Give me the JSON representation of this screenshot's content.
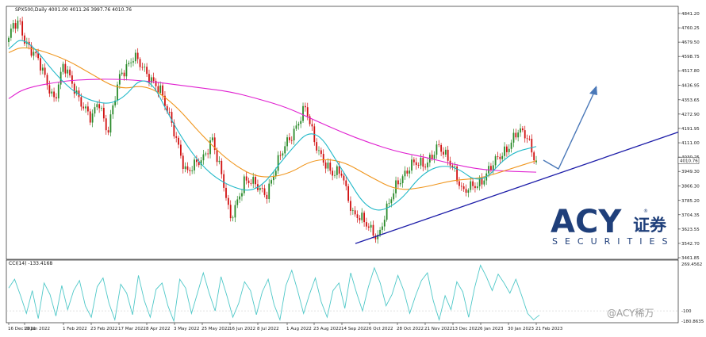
{
  "header": {
    "symbol_line": "SPX500,Daily  4001.00 4011.26 3997.76 4010.76"
  },
  "cci_header": "CCI(14) -133.4168",
  "watermark": {
    "brand": "ACY",
    "securities": "SECURITIES",
    "chinese": "证券",
    "registered": "®",
    "credit": "@ACY稀万"
  },
  "colors": {
    "bull": "#2a8a2a",
    "bear": "#d01010",
    "ma_fast": "#1fb8c8",
    "ma_mid": "#f0961e",
    "ma_slow": "#e020d0",
    "cci": "#4fc8c8",
    "trendline": "#1c1ca8",
    "arrow": "#4a78b8",
    "price_tag": "#ffffff"
  },
  "chart_data": [
    {
      "type": "candlestick",
      "symbol": "SPX500",
      "timeframe": "Daily",
      "ohlc_last": {
        "open": 4001.0,
        "high": 4011.26,
        "low": 3997.76,
        "close": 4010.76
      },
      "y_ticks": [
        4841.2,
        4760.25,
        4679.5,
        4598.75,
        4517.8,
        4436.95,
        4353.65,
        4272.9,
        4191.95,
        4111.0,
        4030.25,
        3949.3,
        3866.3,
        3785.2,
        3704.35,
        3623.55,
        3542.7,
        3461.85
      ],
      "last_price_label": "4010.76",
      "x_ticks": [
        "16 Dec 2021",
        "10 Jan 2022",
        "1 Feb 2022",
        "23 Feb 2022",
        "17 Mar 2022",
        "8 Apr 2022",
        "3 May 2022",
        "25 May 2022",
        "16 Jun 2022",
        "8 Jul 2022",
        "1 Aug 2022",
        "23 Aug 2022",
        "14 Sep 2022",
        "6 Oct 2022",
        "28 Oct 2022",
        "21 Nov 2022",
        "13 Dec 2022",
        "6 Jan 2023",
        "30 Jan 2023",
        "21 Feb 2023"
      ],
      "close_path": [
        [
          "16 Dec 2021",
          4680
        ],
        [
          "23 Dec 2021",
          4770
        ],
        [
          "3 Jan 2022",
          4790
        ],
        [
          "10 Jan 2022",
          4700
        ],
        [
          "18 Jan 2022",
          4560
        ],
        [
          "27 Jan 2022",
          4360
        ],
        [
          "1 Feb 2022",
          4540
        ],
        [
          "10 Feb 2022",
          4420
        ],
        [
          "23 Feb 2022",
          4230
        ],
        [
          "1 Mar 2022",
          4350
        ],
        [
          "8 Mar 2022",
          4180
        ],
        [
          "17 Mar 2022",
          4460
        ],
        [
          "29 Mar 2022",
          4620
        ],
        [
          "8 Apr 2022",
          4480
        ],
        [
          "20 Apr 2022",
          4430
        ],
        [
          "3 May 2022",
          4150
        ],
        [
          "12 May 2022",
          3960
        ],
        [
          "25 May 2022",
          4000
        ],
        [
          "2 Jun 2022",
          4150
        ],
        [
          "10 Jun 2022",
          3900
        ],
        [
          "16 Jun 2022",
          3670
        ],
        [
          "27 Jun 2022",
          3900
        ],
        [
          "8 Jul 2022",
          3860
        ],
        [
          "15 Jul 2022",
          3830
        ],
        [
          "1 Aug 2022",
          4120
        ],
        [
          "16 Aug 2022",
          4300
        ],
        [
          "23 Aug 2022",
          4130
        ],
        [
          "6 Sep 2022",
          3920
        ],
        [
          "14 Sep 2022",
          3950
        ],
        [
          "23 Sep 2022",
          3700
        ],
        [
          "6 Oct 2022",
          3640
        ],
        [
          "13 Oct 2022",
          3580
        ],
        [
          "28 Oct 2022",
          3900
        ],
        [
          "10 Nov 2022",
          3980
        ],
        [
          "21 Nov 2022",
          4000
        ],
        [
          "1 Dec 2022",
          4080
        ],
        [
          "13 Dec 2022",
          3990
        ],
        [
          "22 Dec 2022",
          3820
        ],
        [
          "6 Jan 2023",
          3900
        ],
        [
          "18 Jan 2023",
          3990
        ],
        [
          "30 Jan 2023",
          4100
        ],
        [
          "6 Feb 2023",
          4170
        ],
        [
          "14 Feb 2023",
          4140
        ],
        [
          "21 Feb 2023",
          4010
        ]
      ],
      "sma_fast": [
        [
          "16 Dec 2021",
          4640
        ],
        [
          "10 Jan 2022",
          4720
        ],
        [
          "1 Feb 2022",
          4440
        ],
        [
          "23 Feb 2022",
          4340
        ],
        [
          "17 Mar 2022",
          4330
        ],
        [
          "8 Apr 2022",
          4520
        ],
        [
          "3 May 2022",
          4200
        ],
        [
          "25 May 2022",
          3970
        ],
        [
          "16 Jun 2022",
          3860
        ],
        [
          "8 Jul 2022",
          3830
        ],
        [
          "1 Aug 2022",
          4050
        ],
        [
          "23 Aug 2022",
          4210
        ],
        [
          "14 Sep 2022",
          3960
        ],
        [
          "6 Oct 2022",
          3710
        ],
        [
          "28 Oct 2022",
          3760
        ],
        [
          "21 Nov 2022",
          3960
        ],
        [
          "13 Dec 2022",
          3990
        ],
        [
          "6 Jan 2023",
          3870
        ],
        [
          "30 Jan 2023",
          4050
        ],
        [
          "21 Feb 2023",
          4090
        ]
      ],
      "sma_mid": [
        [
          "16 Dec 2021",
          4620
        ],
        [
          "10 Jan 2022",
          4660
        ],
        [
          "1 Feb 2022",
          4590
        ],
        [
          "23 Feb 2022",
          4500
        ],
        [
          "17 Mar 2022",
          4410
        ],
        [
          "8 Apr 2022",
          4440
        ],
        [
          "3 May 2022",
          4330
        ],
        [
          "25 May 2022",
          4150
        ],
        [
          "16 Jun 2022",
          4000
        ],
        [
          "8 Jul 2022",
          3910
        ],
        [
          "1 Aug 2022",
          3930
        ],
        [
          "23 Aug 2022",
          4020
        ],
        [
          "14 Sep 2022",
          4010
        ],
        [
          "6 Oct 2022",
          3920
        ],
        [
          "28 Oct 2022",
          3840
        ],
        [
          "21 Nov 2022",
          3860
        ],
        [
          "13 Dec 2022",
          3900
        ],
        [
          "6 Jan 2023",
          3910
        ],
        [
          "30 Jan 2023",
          3960
        ],
        [
          "21 Feb 2023",
          4010
        ]
      ],
      "sma_slow": [
        [
          "16 Dec 2021",
          4360
        ],
        [
          "10 Jan 2022",
          4420
        ],
        [
          "1 Feb 2022",
          4460
        ],
        [
          "23 Feb 2022",
          4470
        ],
        [
          "17 Mar 2022",
          4470
        ],
        [
          "8 Apr 2022",
          4460
        ],
        [
          "3 May 2022",
          4440
        ],
        [
          "25 May 2022",
          4420
        ],
        [
          "16 Jun 2022",
          4400
        ],
        [
          "8 Jul 2022",
          4360
        ],
        [
          "1 Aug 2022",
          4310
        ],
        [
          "23 Aug 2022",
          4240
        ],
        [
          "14 Sep 2022",
          4170
        ],
        [
          "6 Oct 2022",
          4110
        ],
        [
          "28 Oct 2022",
          4060
        ],
        [
          "21 Nov 2022",
          4030
        ],
        [
          "13 Dec 2022",
          3990
        ],
        [
          "6 Jan 2023",
          3960
        ],
        [
          "30 Jan 2023",
          3950
        ],
        [
          "21 Feb 2023",
          3945
        ]
      ],
      "support_trendline": [
        [
          "6 Oct 2022",
          3560
        ],
        [
          "8 Mar 2023",
          4180
        ]
      ],
      "projection_arrow": [
        [
          "17 Feb 2023",
          3980
        ],
        [
          "24 Feb 2023",
          3950
        ],
        [
          "8 Mar 2023",
          4380
        ]
      ]
    },
    {
      "type": "line",
      "title": "CCI(14) -133.4168",
      "y_ticks": [
        269.4562,
        -100.0,
        -180.8635
      ],
      "y_tick_labels": [
        "269.4562",
        "-100",
        "-180.8635"
      ],
      "ylim": [
        -180.8635,
        269.4562
      ],
      "x_ticks": [
        "16 Dec 2021",
        "10 Jan 2022",
        "1 Feb 2022",
        "23 Feb 2022",
        "17 Mar 2022",
        "8 Apr 2022",
        "3 May 2022",
        "25 May 2022",
        "16 Jun 2022",
        "8 Jul 2022",
        "1 Aug 2022",
        "23 Aug 2022",
        "14 Sep 2022",
        "6 Oct 2022",
        "28 Oct 2022",
        "21 Nov 2022",
        "13 Dec 2022",
        "6 Jan 2023",
        "30 Jan 2023",
        "21 Feb 2023"
      ],
      "values": [
        80,
        150,
        20,
        -120,
        60,
        -160,
        120,
        30,
        -140,
        100,
        -90,
        60,
        140,
        -60,
        -150,
        90,
        160,
        -40,
        -170,
        110,
        40,
        -130,
        180,
        -20,
        -150,
        70,
        120,
        -60,
        -180,
        150,
        80,
        -120,
        40,
        200,
        40,
        -100,
        170,
        20,
        -150,
        -40,
        130,
        60,
        -130,
        50,
        150,
        -50,
        -170,
        100,
        220,
        60,
        -120,
        30,
        160,
        -30,
        -150,
        60,
        120,
        -80,
        200,
        40,
        -100,
        90,
        240,
        120,
        -60,
        30,
        180,
        60,
        -120,
        20,
        140,
        200,
        -20,
        -170,
        20,
        -90,
        130,
        50,
        -150,
        80,
        260,
        170,
        60,
        190,
        120,
        40,
        150,
        20,
        -120,
        -170,
        -133
      ]
    }
  ]
}
